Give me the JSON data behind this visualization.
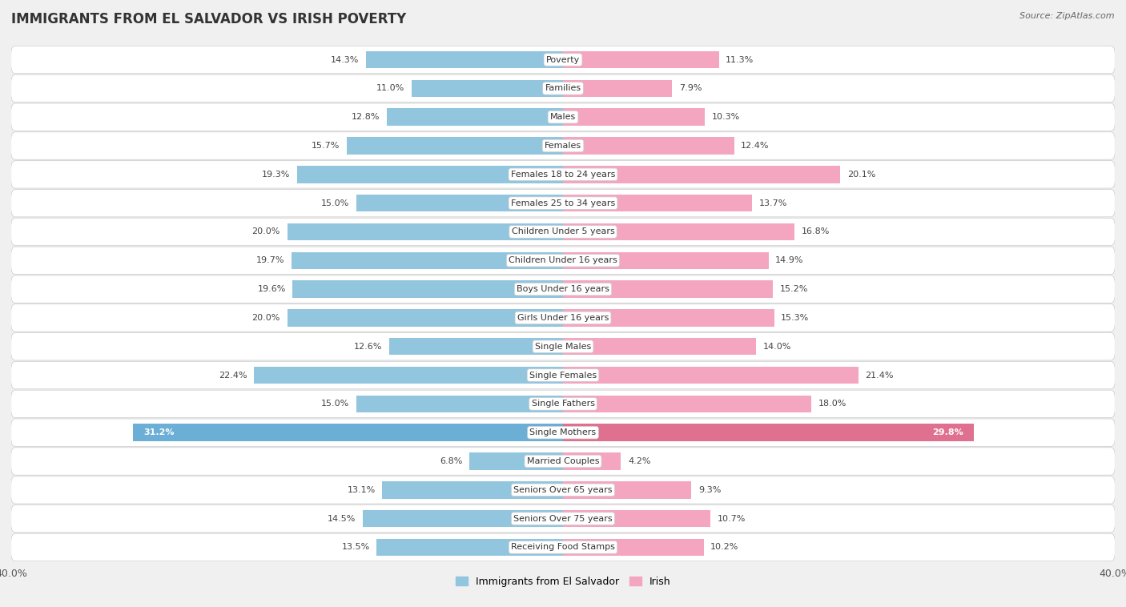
{
  "title": "IMMIGRANTS FROM EL SALVADOR VS IRISH POVERTY",
  "source": "Source: ZipAtlas.com",
  "categories": [
    "Poverty",
    "Families",
    "Males",
    "Females",
    "Females 18 to 24 years",
    "Females 25 to 34 years",
    "Children Under 5 years",
    "Children Under 16 years",
    "Boys Under 16 years",
    "Girls Under 16 years",
    "Single Males",
    "Single Females",
    "Single Fathers",
    "Single Mothers",
    "Married Couples",
    "Seniors Over 65 years",
    "Seniors Over 75 years",
    "Receiving Food Stamps"
  ],
  "el_salvador": [
    14.3,
    11.0,
    12.8,
    15.7,
    19.3,
    15.0,
    20.0,
    19.7,
    19.6,
    20.0,
    12.6,
    22.4,
    15.0,
    31.2,
    6.8,
    13.1,
    14.5,
    13.5
  ],
  "irish": [
    11.3,
    7.9,
    10.3,
    12.4,
    20.1,
    13.7,
    16.8,
    14.9,
    15.2,
    15.3,
    14.0,
    21.4,
    18.0,
    29.8,
    4.2,
    9.3,
    10.7,
    10.2
  ],
  "el_salvador_color": "#92c5de",
  "irish_color": "#f4a6c0",
  "el_salvador_label": "Immigrants from El Salvador",
  "irish_label": "Irish",
  "x_max": 40.0,
  "background_color": "#f0f0f0",
  "row_bg_color": "#ffffff",
  "row_alt_bg_color": "#e8e8e8",
  "bar_height": 0.6,
  "title_fontsize": 12,
  "label_fontsize": 8,
  "value_fontsize": 8,
  "tick_fontsize": 9,
  "source_fontsize": 8,
  "single_mothers_es_color": "#6baed6",
  "single_mothers_ir_color": "#e07090"
}
